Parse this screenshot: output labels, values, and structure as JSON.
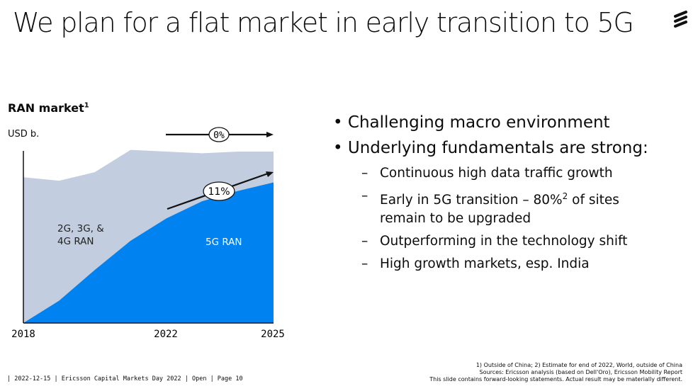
{
  "slide": {
    "title": "We plan for a flat market in early transition to 5G",
    "logo": "ericsson-logo"
  },
  "chart_data": {
    "type": "area",
    "stacked": true,
    "title": "RAN market",
    "title_footnote": "1",
    "ylabel": "USD b.",
    "x": [
      2018,
      2019,
      2020,
      2021,
      2022,
      2023,
      2024,
      2025
    ],
    "x_tick_labels": [
      "2018",
      "2022",
      "2025"
    ],
    "ylim": [
      0,
      100
    ],
    "y_ticks_shown": false,
    "grid": false,
    "series": [
      {
        "name": "5G RAN",
        "color": "#0082f0",
        "values": [
          0,
          13,
          31,
          48,
          61,
          71,
          77,
          82
        ]
      },
      {
        "name": "2G, 3G, & 4G RAN",
        "color": "#c3cde0",
        "values": [
          85,
          70,
          57,
          53,
          39,
          28,
          23,
          18
        ]
      }
    ],
    "series_labels": {
      "legacy_line1": "2G, 3G, &",
      "legacy_line2": "4G RAN",
      "fiveg": "5G RAN"
    },
    "annotations": [
      {
        "label": "0%",
        "meaning": "total market growth"
      },
      {
        "label": "11%",
        "meaning": "5G RAN growth"
      }
    ]
  },
  "bullets": [
    {
      "text": "Challenging macro environment",
      "sub": []
    },
    {
      "text": "Underlying fundamentals are strong:",
      "sub": [
        {
          "text": "Continuous high data traffic growth"
        },
        {
          "text_before": "Early in 5G transition – 80%",
          "sup": "2",
          "text_after": " of sites",
          "line2": "remain to be upgraded"
        },
        {
          "text": "Outperforming in the technology shift"
        },
        {
          "text": "High growth markets, esp. India"
        }
      ]
    }
  ],
  "bullet_char": "•",
  "dash_char": "–",
  "footer": {
    "meta": "| 2022-12-15 | Ericsson Capital Markets Day 2022 | Open | Page 10",
    "notes": [
      "1) Outside of China; 2) Estimate for end of 2022, World, outside of  China",
      "Sources: Ericsson analysis (based on Dell'Oro), Ericsson Mobility Report",
      "This slide contains forward-looking statements. Actual result may be materially different."
    ]
  }
}
